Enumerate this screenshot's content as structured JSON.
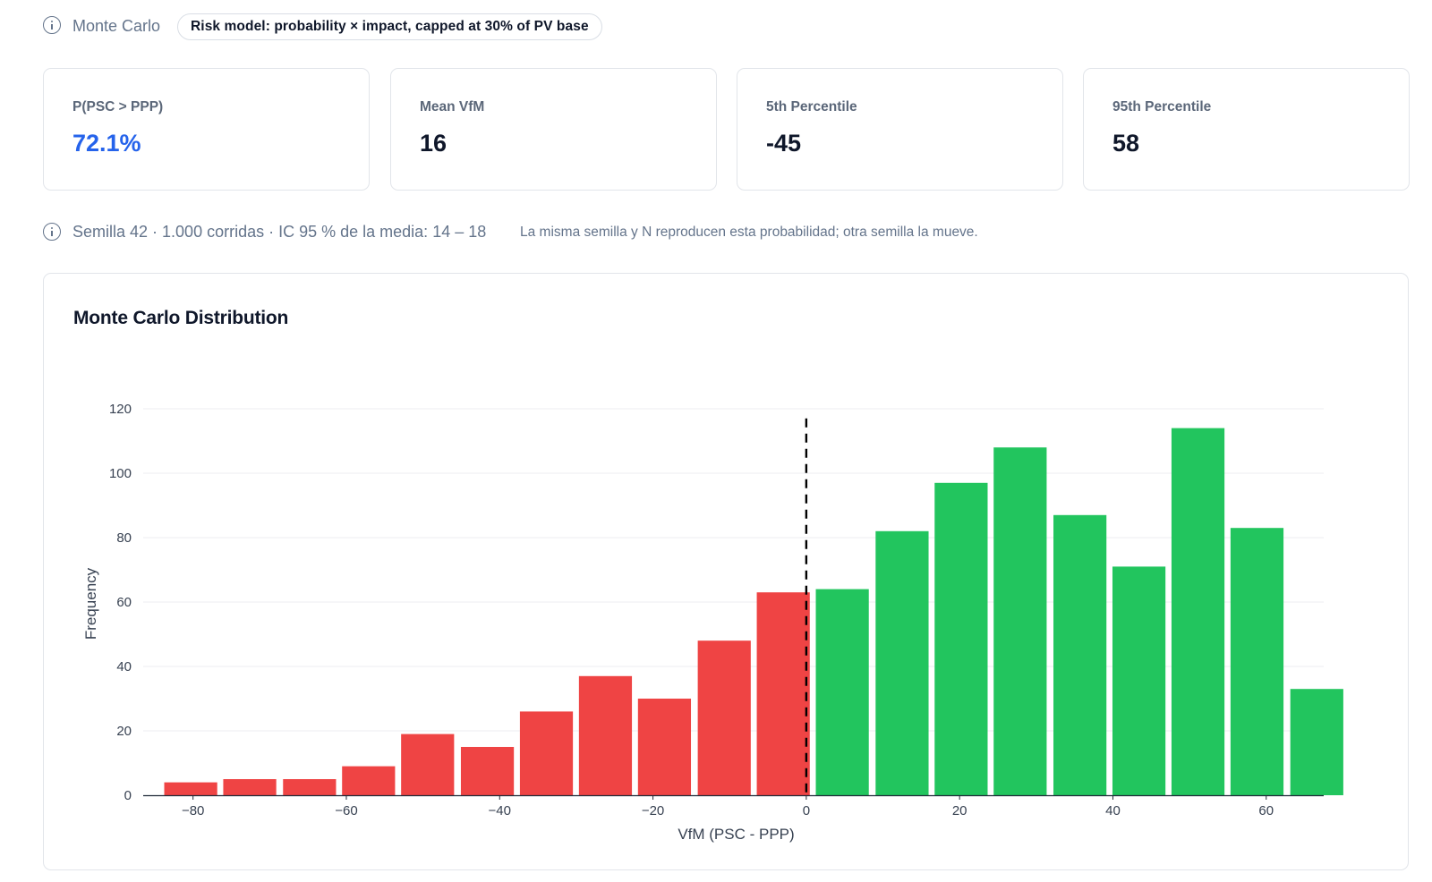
{
  "header": {
    "section_label": "Monte Carlo",
    "section_icon": "info-icon",
    "risk_pill": "Risk model: probability × impact, capped at 30% of PV base"
  },
  "kpis": [
    {
      "label": "P(PSC > PPP)",
      "value": "72.1%",
      "accent": true
    },
    {
      "label": "Mean VfM",
      "value": "16",
      "accent": false
    },
    {
      "label": "5th Percentile",
      "value": "-45",
      "accent": false
    },
    {
      "label": "95th Percentile",
      "value": "58",
      "accent": false
    }
  ],
  "seed_info": {
    "icon": "info-icon",
    "summary": "Semilla 42 · 1.000 corridas · IC 95 % de la media: 14 – 18",
    "note": "La misma semilla y N reproducen esta probabilidad; otra semilla la mueve."
  },
  "chart_title": "Monte Carlo Distribution",
  "colors": {
    "negative": "#ef4444",
    "positive": "#22c55e",
    "accent": "#2563eb",
    "reference_line": "#000000"
  },
  "chart_data": {
    "type": "bar",
    "title": "Monte Carlo Distribution",
    "xlabel": "VfM (PSC - PPP)",
    "ylabel": "Frequency",
    "bin_width": 7.73,
    "x": [
      -80.3,
      -72.6,
      -64.8,
      -57.1,
      -49.4,
      -41.6,
      -33.9,
      -26.2,
      -18.5,
      -10.7,
      -3.0,
      4.7,
      12.5,
      20.2,
      27.9,
      35.7,
      43.4,
      51.1,
      58.8,
      66.6
    ],
    "values": [
      4,
      5,
      5,
      9,
      19,
      15,
      26,
      37,
      30,
      48,
      63,
      64,
      82,
      97,
      108,
      87,
      71,
      114,
      83,
      33
    ],
    "bar_colors": [
      "negative",
      "negative",
      "negative",
      "negative",
      "negative",
      "negative",
      "negative",
      "negative",
      "negative",
      "negative",
      "negative",
      "positive",
      "positive",
      "positive",
      "positive",
      "positive",
      "positive",
      "positive",
      "positive",
      "positive"
    ],
    "xlim": [
      -86.5,
      67.5
    ],
    "ylim": [
      0,
      120
    ],
    "xticks": [
      -80,
      -60,
      -40,
      -20,
      0,
      20,
      40,
      60
    ],
    "xtick_labels": [
      "−80",
      "−60",
      "−40",
      "−20",
      "0",
      "20",
      "40",
      "60"
    ],
    "yticks": [
      0,
      20,
      40,
      60,
      80,
      100,
      120
    ],
    "reference_line_x": 0,
    "grid": "horizontal",
    "legend": "none"
  }
}
